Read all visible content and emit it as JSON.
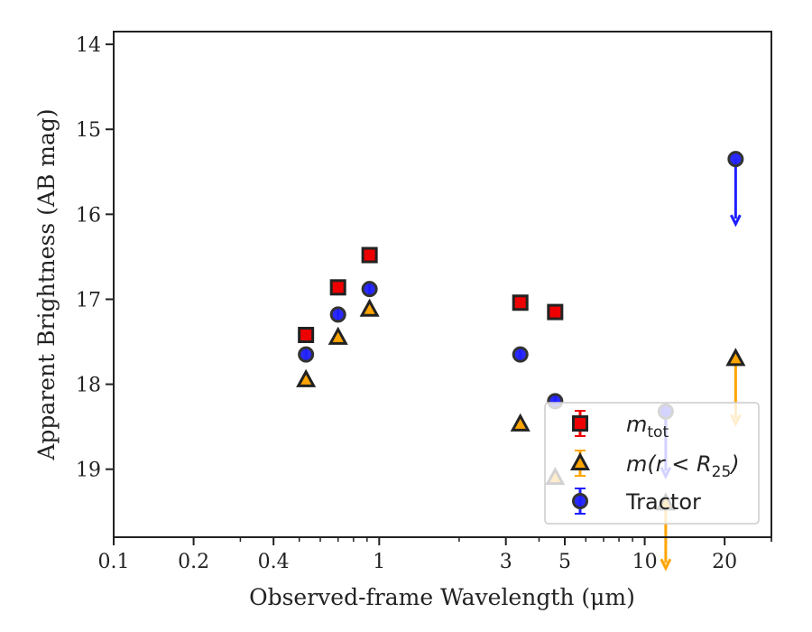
{
  "chart_data": {
    "type": "scatter",
    "xlabel": "Observed-frame Wavelength (μm)",
    "ylabel": "Apparent Brightness (AB mag)",
    "xscale": "log",
    "xlim": [
      0.1,
      30
    ],
    "ylim": [
      19.8,
      13.85
    ],
    "y_inverted": true,
    "xticks": [
      {
        "value": 0.1,
        "label": "0.1"
      },
      {
        "value": 0.2,
        "label": "0.2"
      },
      {
        "value": 0.4,
        "label": "0.4"
      },
      {
        "value": 1,
        "label": "1"
      },
      {
        "value": 3,
        "label": "3"
      },
      {
        "value": 5,
        "label": "5"
      },
      {
        "value": 10,
        "label": "10"
      },
      {
        "value": 20,
        "label": "20"
      }
    ],
    "yticks": [
      {
        "value": 14,
        "label": "14"
      },
      {
        "value": 15,
        "label": "15"
      },
      {
        "value": 16,
        "label": "16"
      },
      {
        "value": 17,
        "label": "17"
      },
      {
        "value": 18,
        "label": "18"
      },
      {
        "value": 19,
        "label": "19"
      }
    ],
    "grid": false,
    "legend_position": "lower-right",
    "series": [
      {
        "name": "m_tot",
        "legend_main": "m",
        "legend_sub": "tot",
        "marker": "square",
        "color": "#ee0000",
        "points": [
          {
            "x": 0.53,
            "y": 17.42,
            "err": 0.07
          },
          {
            "x": 0.7,
            "y": 16.86,
            "err": 0.07
          },
          {
            "x": 0.92,
            "y": 16.48,
            "err": 0.07
          },
          {
            "x": 3.4,
            "y": 17.04,
            "err": 0.07
          },
          {
            "x": 4.6,
            "y": 17.15,
            "err": 0.07
          }
        ]
      },
      {
        "name": "m(r < R25)",
        "legend_main": "m(r < R",
        "legend_sub": "25",
        "legend_tail": ")",
        "marker": "triangle",
        "color": "#ffa500",
        "points": [
          {
            "x": 0.53,
            "y": 17.95
          },
          {
            "x": 0.7,
            "y": 17.45
          },
          {
            "x": 0.92,
            "y": 17.12
          },
          {
            "x": 3.4,
            "y": 18.47
          },
          {
            "x": 4.6,
            "y": 19.1
          },
          {
            "x": 12,
            "y": 19.4,
            "limit": true
          },
          {
            "x": 22,
            "y": 17.7,
            "limit": true
          }
        ]
      },
      {
        "name": "Tractor",
        "legend_main": "Tractor",
        "marker": "circle",
        "color": "#1f1fff",
        "points": [
          {
            "x": 0.53,
            "y": 17.65,
            "err": 0.07
          },
          {
            "x": 0.7,
            "y": 17.18,
            "err": 0.07
          },
          {
            "x": 0.92,
            "y": 16.88,
            "err": 0.07
          },
          {
            "x": 3.4,
            "y": 17.65,
            "err": 0.07
          },
          {
            "x": 4.6,
            "y": 18.2,
            "err": 0.07
          },
          {
            "x": 12,
            "y": 18.32,
            "limit": true
          },
          {
            "x": 22,
            "y": 15.35,
            "limit": true
          }
        ]
      }
    ]
  }
}
